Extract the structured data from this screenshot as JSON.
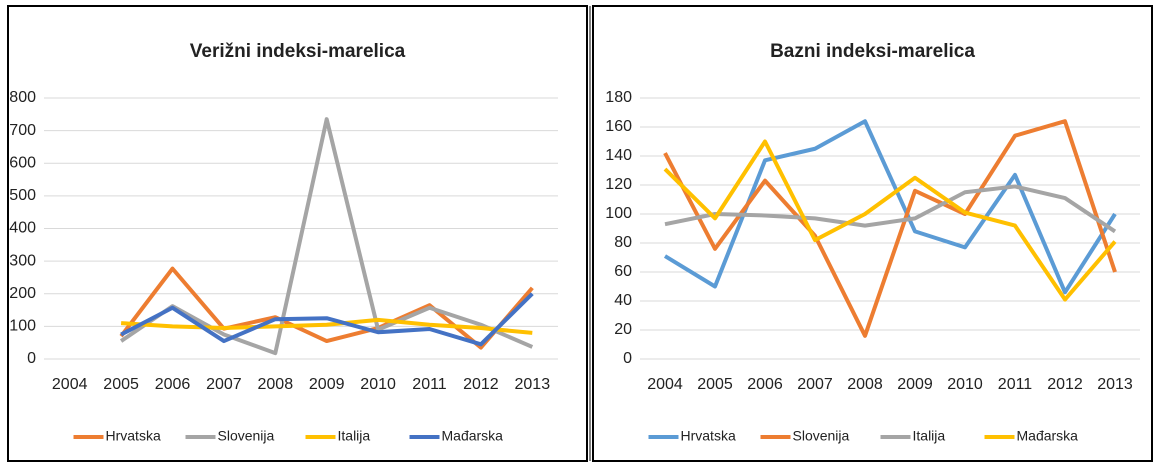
{
  "chart_data": [
    {
      "type": "line",
      "title": "Verižni indeksi-marelica",
      "categories": [
        "2004",
        "2005",
        "2006",
        "2007",
        "2008",
        "2009",
        "2010",
        "2011",
        "2012",
        "2013"
      ],
      "ylim": [
        0,
        800
      ],
      "yticks": [
        0,
        100,
        200,
        300,
        400,
        500,
        600,
        700,
        800
      ],
      "grid": true,
      "legend": "bottom",
      "series": [
        {
          "name": "Hrvatska",
          "color": "#ed7d31",
          "values": [
            null,
            70,
            277,
            93,
            128,
            55,
            95,
            165,
            35,
            218
          ]
        },
        {
          "name": "Slovenija",
          "color": "#a5a5a5",
          "values": [
            null,
            55,
            162,
            75,
            18,
            735,
            90,
            157,
            105,
            37
          ]
        },
        {
          "name": "Italija",
          "color": "#ffc000",
          "values": [
            null,
            110,
            100,
            95,
            100,
            105,
            120,
            105,
            95,
            80
          ]
        },
        {
          "name": "Mađarska",
          "color": "#4472c4",
          "values": [
            null,
            75,
            157,
            55,
            122,
            125,
            82,
            92,
            45,
            200
          ]
        }
      ]
    },
    {
      "type": "line",
      "title": "Bazni indeksi-marelica",
      "categories": [
        "2004",
        "2005",
        "2006",
        "2007",
        "2008",
        "2009",
        "2010",
        "2011",
        "2012",
        "2013"
      ],
      "ylim": [
        0,
        180
      ],
      "yticks": [
        0,
        20,
        40,
        60,
        80,
        100,
        120,
        140,
        160,
        180
      ],
      "grid": true,
      "legend": "bottom",
      "series": [
        {
          "name": "Hrvatska",
          "color": "#5b9bd5",
          "values": [
            71,
            50,
            137,
            145,
            164,
            88,
            77,
            127,
            46,
            100
          ]
        },
        {
          "name": "Slovenija",
          "color": "#ed7d31",
          "values": [
            142,
            76,
            123,
            85,
            16,
            116,
            100,
            154,
            164,
            60
          ]
        },
        {
          "name": "Italija",
          "color": "#a5a5a5",
          "values": [
            93,
            100,
            99,
            97,
            92,
            97,
            115,
            119,
            111,
            88
          ]
        },
        {
          "name": "Mađarska",
          "color": "#ffc000",
          "values": [
            131,
            97,
            150,
            82,
            100,
            125,
            101,
            92,
            41,
            81
          ]
        }
      ]
    }
  ]
}
